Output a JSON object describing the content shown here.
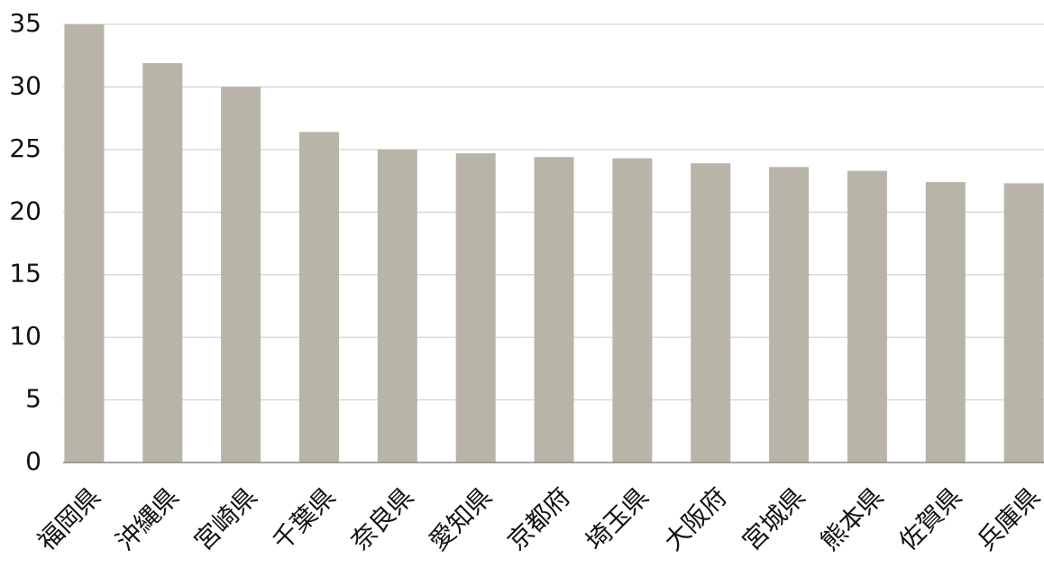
{
  "chart_data": {
    "type": "bar",
    "categories": [
      "福岡県",
      "沖縄県",
      "宮崎県",
      "千葉県",
      "奈良県",
      "愛知県",
      "京都府",
      "埼玉県",
      "大阪府",
      "宮城県",
      "熊本県",
      "佐賀県",
      "兵庫県"
    ],
    "values": [
      35,
      31.9,
      30,
      26.4,
      25,
      24.7,
      24.4,
      24.3,
      23.9,
      23.6,
      23.3,
      22.4,
      22.3
    ],
    "color": "#b8b4a8",
    "ylim": [
      0,
      35
    ],
    "yticks": [
      0,
      5,
      10,
      15,
      20,
      25,
      30,
      35
    ],
    "grid": true
  }
}
